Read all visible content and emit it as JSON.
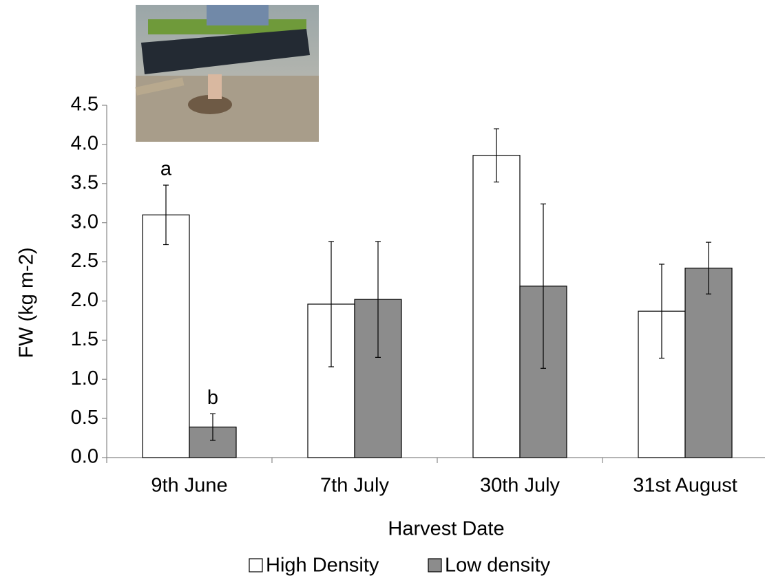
{
  "chart_data": {
    "type": "bar",
    "x_label": "Harvest Date",
    "y_label": "FW (kg m-2)",
    "categories": [
      "9th June",
      "7th July",
      "30th July",
      "31st August"
    ],
    "series": [
      {
        "name": "High Density",
        "color": "#ffffff",
        "values": [
          3.1,
          1.96,
          3.86,
          1.87
        ],
        "errors": [
          0.38,
          0.8,
          0.34,
          0.6
        ]
      },
      {
        "name": "Low density",
        "color": "#8c8c8c",
        "values": [
          0.39,
          2.02,
          2.19,
          2.42
        ],
        "errors": [
          0.17,
          0.74,
          1.05,
          0.33
        ]
      }
    ],
    "annotations": [
      "a",
      "b"
    ],
    "ylim": [
      0,
      4.5
    ],
    "yticks": [
      {
        "value": 0,
        "label": "0.0"
      },
      {
        "value": 0.5,
        "label": "0.5"
      },
      {
        "value": 1,
        "label": "1.0"
      },
      {
        "value": 1.5,
        "label": "1.5"
      },
      {
        "value": 2,
        "label": "2.0"
      },
      {
        "value": 2.5,
        "label": "2.5"
      },
      {
        "value": 3,
        "label": "3.0"
      },
      {
        "value": 3.5,
        "label": "3.5"
      },
      {
        "value": 4,
        "label": "4.0"
      },
      {
        "value": 4.5,
        "label": "4.5"
      }
    ],
    "grid": false,
    "legend": "bottom"
  }
}
